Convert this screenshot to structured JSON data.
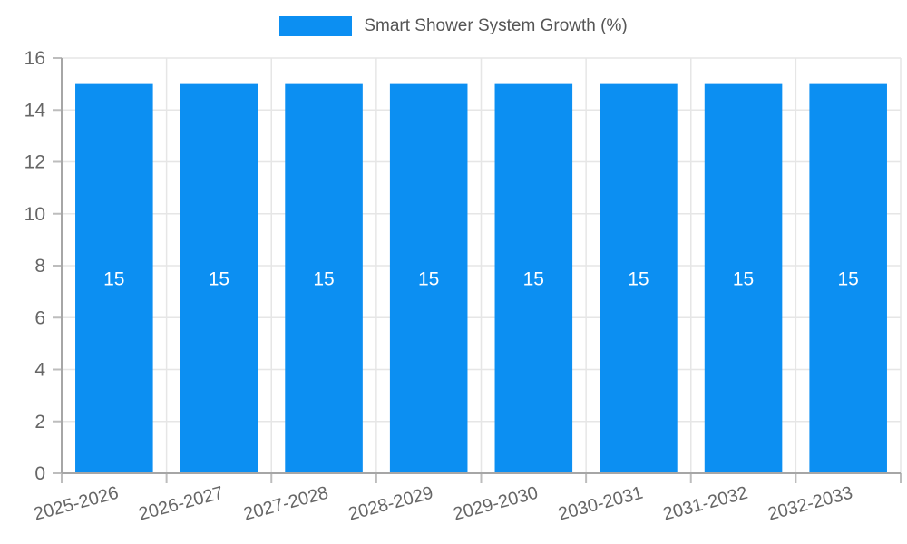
{
  "chart_data": {
    "type": "bar",
    "title": "",
    "legend": {
      "label": "Smart Shower System Growth (%)",
      "position": "top"
    },
    "categories": [
      "2025-2026",
      "2026-2027",
      "2027-2028",
      "2028-2029",
      "2029-2030",
      "2030-2031",
      "2031-2032",
      "2032-2033"
    ],
    "series": [
      {
        "name": "Smart Shower System Growth (%)",
        "values": [
          15,
          15,
          15,
          15,
          15,
          15,
          15,
          15
        ]
      }
    ],
    "bar_labels": [
      "15",
      "15",
      "15",
      "15",
      "15",
      "15",
      "15",
      "15"
    ],
    "xlabel": "",
    "ylabel": "",
    "ylim": [
      0,
      16
    ],
    "yticks": [
      0,
      2,
      4,
      6,
      8,
      10,
      12,
      14,
      16
    ],
    "grid": true,
    "x_label_rotation_deg": -15,
    "colors": {
      "bar": "#0c8ff2",
      "grid": "#e6e6e6",
      "axis": "#a6a6a6",
      "tick": "#bdbdbd",
      "tick_text": "#666666",
      "legend_text": "#555555",
      "bar_label": "#ffffff",
      "background": "#ffffff"
    }
  }
}
